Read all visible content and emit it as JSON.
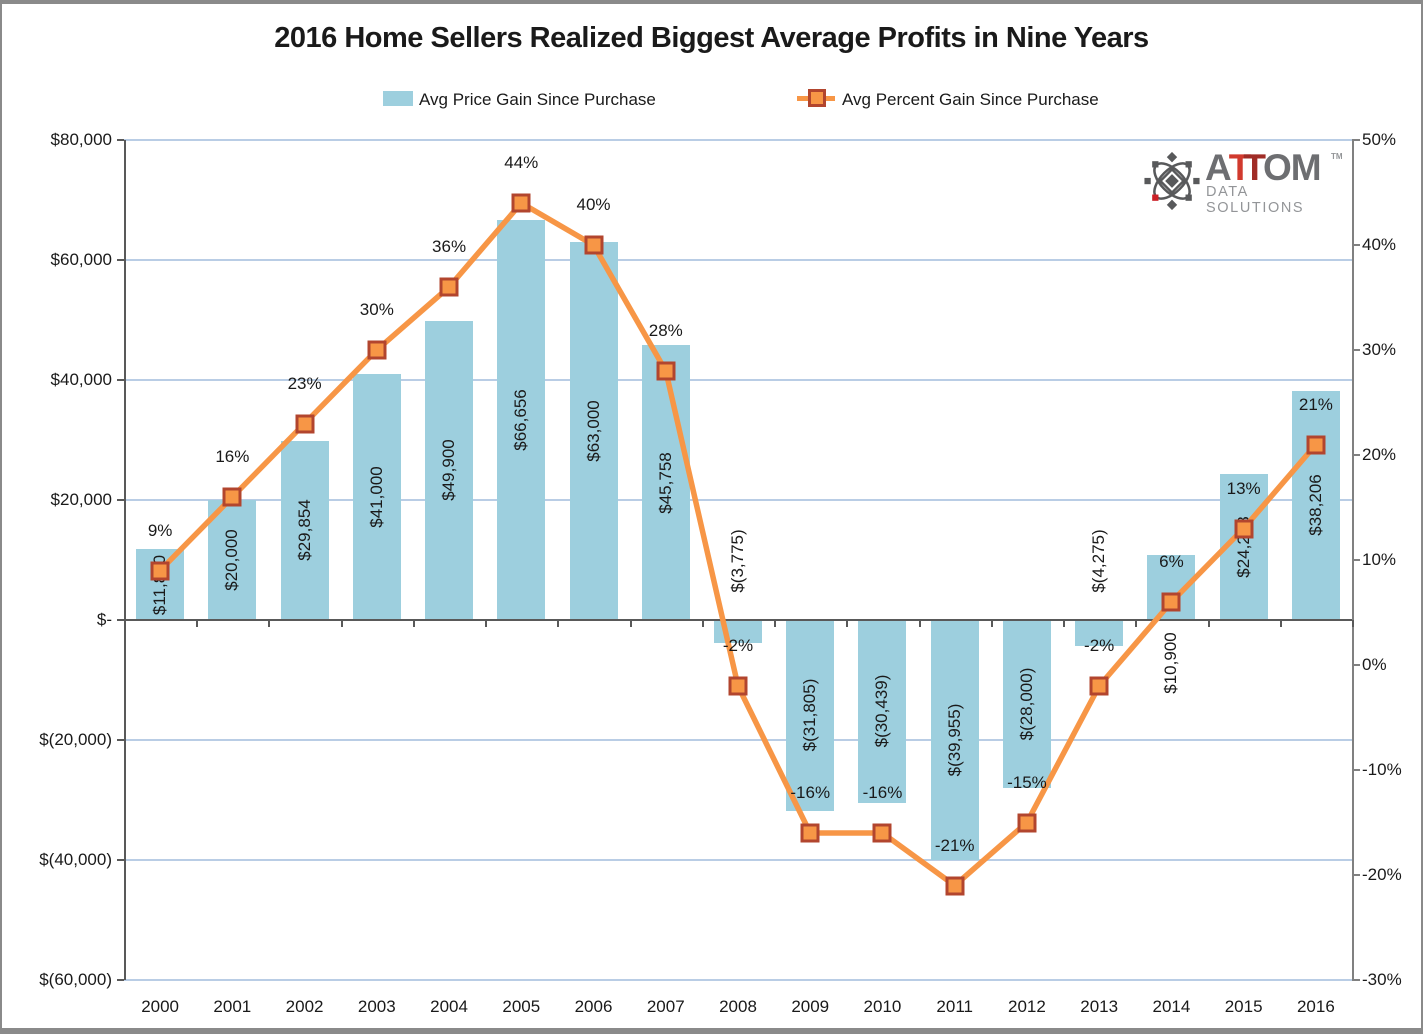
{
  "title": "2016 Home Sellers Realized Biggest Average Profits in Nine Years",
  "legend": {
    "bar_label": "Avg Price Gain Since Purchase",
    "line_label": "Avg Percent Gain Since Purchase"
  },
  "logo": {
    "part_a": "A",
    "part_t1": "T",
    "part_t2": "T",
    "part_om": "OM",
    "tm": "TM",
    "subtitle": "DATA SOLUTIONS"
  },
  "colors": {
    "bar_fill": "#9DCFDE",
    "line": "#F79646",
    "marker_fill": "#F79646",
    "marker_border": "#B2452E",
    "gridline": "#B9CDE5",
    "axis": "#595959",
    "right_axis": "#808080",
    "logo_gray": "#6D6E71",
    "logo_red1": "#D13A2E",
    "logo_red2": "#A02C26",
    "logo_icon_gray": "#58595B",
    "logo_icon_red": "#CB2026"
  },
  "chart_data": {
    "type": "bar",
    "subtype": "bar-line-combo",
    "categories": [
      "2000",
      "2001",
      "2002",
      "2003",
      "2004",
      "2005",
      "2006",
      "2007",
      "2008",
      "2009",
      "2010",
      "2011",
      "2012",
      "2013",
      "2014",
      "2015",
      "2016"
    ],
    "series": [
      {
        "name": "Avg Price Gain Since Purchase",
        "type": "bar",
        "axis": "left",
        "values": [
          11800,
          20000,
          29854,
          41000,
          49900,
          66656,
          63000,
          45758,
          -3775,
          -31805,
          -30439,
          -39955,
          -28000,
          -4275,
          10900,
          24288,
          38206
        ],
        "labels": [
          "$11,800",
          "$20,000",
          "$29,854",
          "$41,000",
          "$49,900",
          "$66,656",
          "$63,000",
          "$45,758",
          "$(3,775)",
          "$(31,805)",
          "$(30,439)",
          "$(39,955)",
          "$(28,000)",
          "$(4,275)",
          "$10,900",
          "$24,288",
          "$38,206"
        ]
      },
      {
        "name": "Avg Percent Gain Since Purchase",
        "type": "line",
        "axis": "right",
        "values": [
          9,
          16,
          23,
          30,
          36,
          44,
          40,
          28,
          -2,
          -16,
          -16,
          -21,
          -15,
          -2,
          6,
          13,
          21
        ],
        "labels": [
          "9%",
          "16%",
          "23%",
          "30%",
          "36%",
          "44%",
          "40%",
          "28%",
          "-2%",
          "-16%",
          "-16%",
          "-21%",
          "-15%",
          "-2%",
          "6%",
          "13%",
          "21%"
        ]
      }
    ],
    "left_axis": {
      "range": [
        -60000,
        80000
      ],
      "tick_values": [
        80000,
        60000,
        40000,
        20000,
        0,
        -20000,
        -40000,
        -60000
      ],
      "tick_labels": [
        "$80,000",
        "$60,000",
        "$40,000",
        "$20,000",
        "$-",
        "$(20,000)",
        "$(40,000)",
        "$(60,000)"
      ]
    },
    "right_axis": {
      "range": [
        -30,
        50
      ],
      "tick_values": [
        50,
        40,
        30,
        20,
        10,
        0,
        -10,
        -20,
        -30
      ],
      "tick_labels": [
        "50%",
        "40%",
        "30%",
        "20%",
        "10%",
        "0%",
        "-10%",
        "-20%",
        "-30%"
      ]
    },
    "grid": true,
    "legend_position": "top"
  }
}
